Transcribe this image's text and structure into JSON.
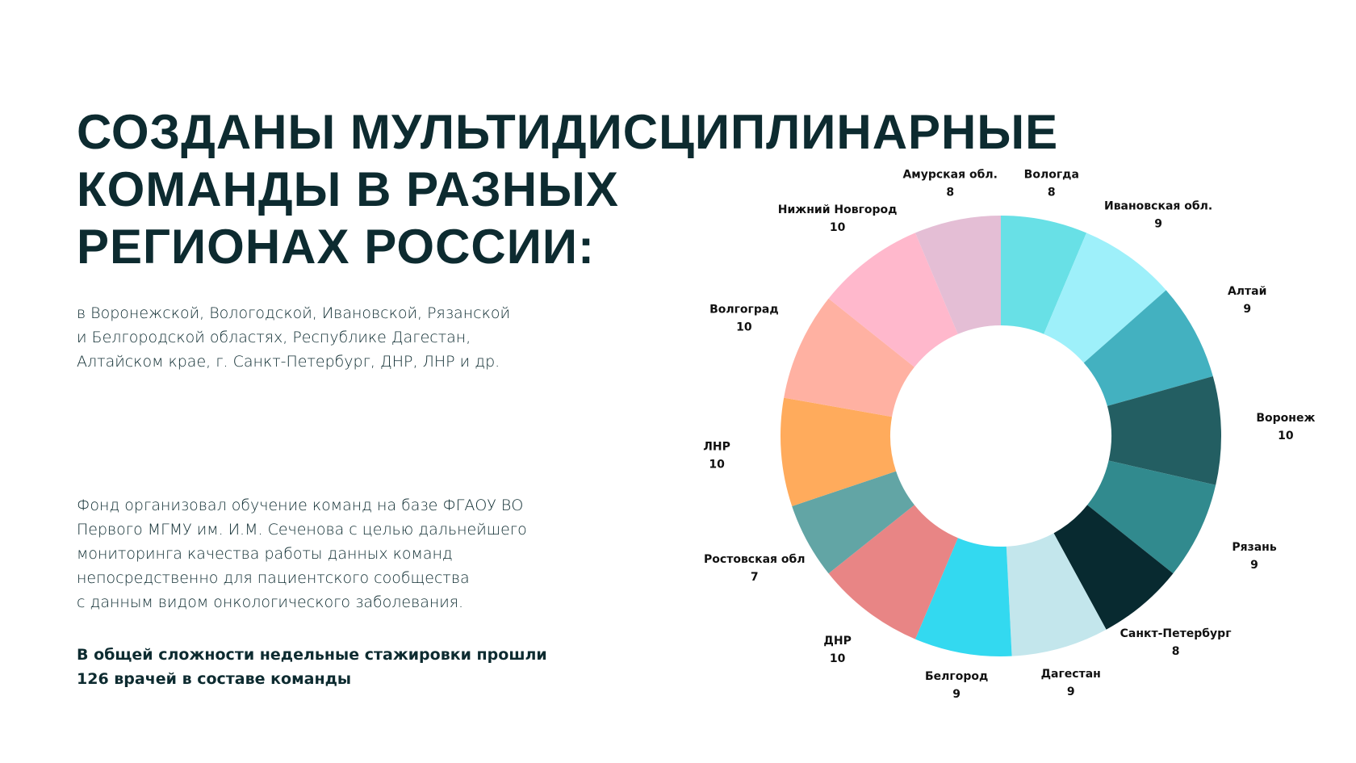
{
  "header": {
    "title_lines": [
      "СОЗДАНЫ МУЛЬТИДИСЦИПЛИНАРНЫЕ",
      "КОМАНДЫ В РАЗНЫХ",
      "РЕГИОНАХ РОССИИ:"
    ]
  },
  "intro": {
    "lines": [
      "в Воронежской, Вологодской, Ивановской, Рязанской",
      "и Белгородской областях, Республике Дагестан,",
      "Алтайском крае, г. Санкт-Петербург, ДНР, ЛНР и др."
    ]
  },
  "body": {
    "lines": [
      "Фонд организовал обучение команд на базе ФГАОУ ВО",
      "Первого МГМУ им. И.М. Сеченова с целью дальнейшего",
      "мониторинга качества работы данных команд",
      "непосредственно для пациентского сообщества",
      "с данным видом онкологического заболевания."
    ]
  },
  "summary": {
    "lines": [
      "В общей сложности недельные стажировки прошли",
      "126 врачей в составе команды"
    ]
  },
  "chart_data": {
    "type": "donut",
    "categories": [
      "Вологда",
      "Ивановская обл.",
      "Алтай",
      "Воронеж",
      "Рязань",
      "Санкт-Петербург",
      "Дагестан",
      "Белгород",
      "ДНР",
      "Ростовская обл",
      "ЛНР",
      "Волгоград",
      "Нижний Новгород",
      "Амурская обл."
    ],
    "values": [
      8,
      9,
      9,
      10,
      9,
      8,
      9,
      9,
      10,
      7,
      10,
      10,
      10,
      8
    ],
    "colors": [
      "#68e0e6",
      "#9ef0fa",
      "#43b1c0",
      "#235e62",
      "#318a8e",
      "#082a30",
      "#c3e6ec",
      "#33d9f0",
      "#e88585",
      "#62a5a5",
      "#ffab5c",
      "#ffb1a2",
      "#ffb8cc",
      "#e4bed5"
    ]
  }
}
